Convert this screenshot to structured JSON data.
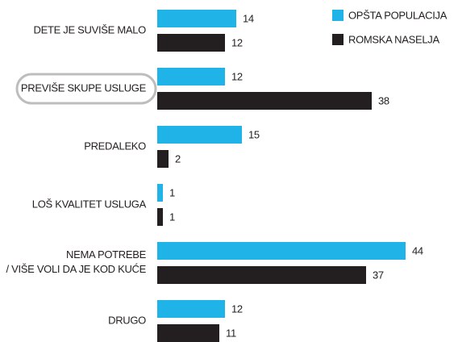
{
  "chart_data": {
    "type": "bar",
    "orientation": "horizontal",
    "categories": [
      "DETE JE SUVIŠE MALO",
      "PREVIŠE SKUPE USLUGE",
      "PREDALEKO",
      "LOŠ KVALITET USLUGA",
      "NEMA POTREBE / VIŠE VOLI DA JE KOD KUĆE",
      "DRUGO"
    ],
    "series": [
      {
        "name": "OPŠTA POPULACIJA",
        "color": "#1fb3e8",
        "values": [
          14,
          12,
          15,
          1,
          44,
          12
        ]
      },
      {
        "name": "ROMSKA NASELJA",
        "color": "#231f20",
        "values": [
          12,
          38,
          2,
          1,
          37,
          11
        ]
      }
    ],
    "legend": "top-right"
  }
}
